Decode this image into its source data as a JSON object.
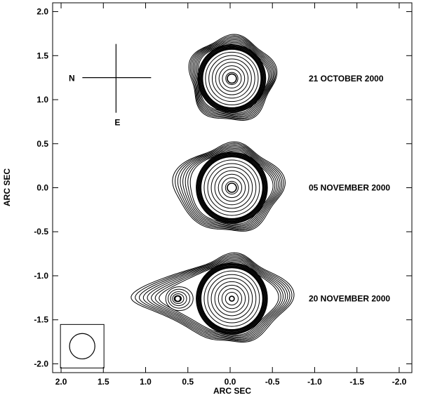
{
  "chart_data": {
    "type": "contour",
    "xlabel": "ARC SEC",
    "ylabel": "ARC SEC",
    "xlim": [
      2.1,
      -2.15
    ],
    "ylim": [
      -2.1,
      2.1
    ],
    "x_ticks": [
      {
        "value": 2.0,
        "label": "2.0"
      },
      {
        "value": 1.5,
        "label": "1.5"
      },
      {
        "value": 1.0,
        "label": "1.0"
      },
      {
        "value": 0.5,
        "label": "0.5"
      },
      {
        "value": 0.0,
        "label": "0.0"
      },
      {
        "value": -0.5,
        "label": "-0.5"
      },
      {
        "value": -1.0,
        "label": "-1.0"
      },
      {
        "value": -1.5,
        "label": "-1.5"
      },
      {
        "value": -2.0,
        "label": "-2.0"
      }
    ],
    "y_ticks": [
      {
        "value": 2.0,
        "label": "2.0"
      },
      {
        "value": 1.5,
        "label": "1.5"
      },
      {
        "value": 1.0,
        "label": "1.0"
      },
      {
        "value": 0.5,
        "label": "0.5"
      },
      {
        "value": 0.0,
        "label": "0.0"
      },
      {
        "value": -0.5,
        "label": "-0.5"
      },
      {
        "value": -1.0,
        "label": "-1.0"
      },
      {
        "value": -1.5,
        "label": "-1.5"
      },
      {
        "value": -2.0,
        "label": "-2.0"
      }
    ],
    "compass": {
      "north": "N",
      "east": "E",
      "center": [
        1.35,
        1.25
      ]
    },
    "epochs": [
      {
        "label": "21 OCTOBER  2000",
        "center": [
          -0.02,
          1.24
        ],
        "core_radius": 0.4,
        "inner_peak": true,
        "secondary": null
      },
      {
        "label": "05 NOVEMBER 2000",
        "center": [
          -0.02,
          0.0
        ],
        "core_radius": 0.42,
        "inner_peak": true,
        "secondary": null
      },
      {
        "label": "20 NOVEMBER 2000",
        "center": [
          -0.02,
          -1.26
        ],
        "core_radius": 0.42,
        "inner_peak": true,
        "secondary": {
          "center": [
            0.62,
            -1.26
          ]
        }
      }
    ],
    "beam": {
      "center": [
        1.75,
        -1.8
      ],
      "radius": 0.15
    }
  }
}
